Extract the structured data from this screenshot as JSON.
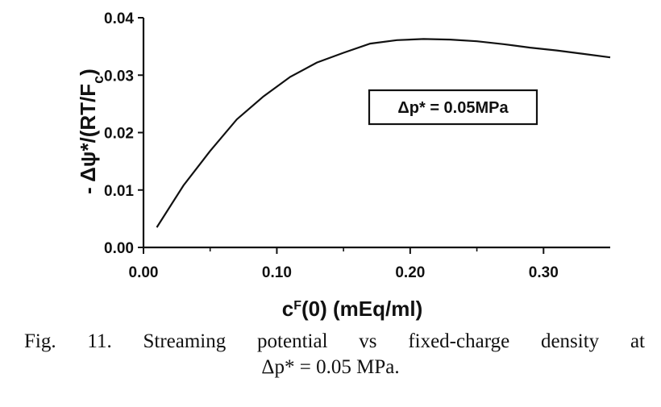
{
  "chart_data": {
    "type": "line",
    "x": [
      0.01,
      0.03,
      0.05,
      0.07,
      0.09,
      0.11,
      0.13,
      0.15,
      0.17,
      0.19,
      0.21,
      0.23,
      0.25,
      0.27,
      0.29,
      0.31,
      0.33,
      0.35
    ],
    "series": [
      {
        "values": [
          0.0035,
          0.0108,
          0.0168,
          0.0223,
          0.0263,
          0.0297,
          0.0322,
          0.0339,
          0.0355,
          0.0361,
          0.0363,
          0.0362,
          0.0359,
          0.0354,
          0.0348,
          0.0343,
          0.0337,
          0.0331
        ]
      }
    ],
    "xlim": [
      0.0,
      0.35
    ],
    "ylim": [
      0.0,
      0.04
    ],
    "xticks": [
      "0.00",
      "0.10",
      "0.20",
      "0.30"
    ],
    "xtick_values": [
      0.0,
      0.1,
      0.2,
      0.3
    ],
    "yticks": [
      "0.00",
      "0.01",
      "0.02",
      "0.03",
      "0.04"
    ],
    "ytick_values": [
      0.0,
      0.01,
      0.02,
      0.03,
      0.04
    ],
    "ylabel": "- Δψ*/(RT/F_c)",
    "xlabel": "c^F(0) (mEq/ml)",
    "grid": false,
    "annotation": "Δp* = 0.05MPa",
    "line_color": "#111111"
  },
  "caption": {
    "line1": "Fig. 11. Streaming potential vs fixed-charge density at",
    "line2": "Δp* = 0.05 MPa."
  }
}
